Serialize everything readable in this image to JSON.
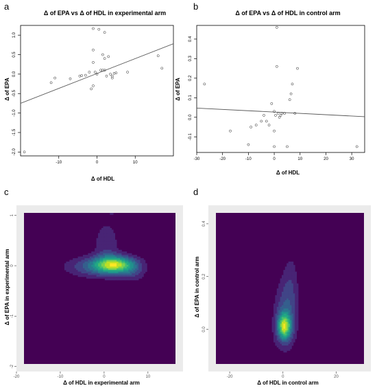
{
  "chart_data": [
    {
      "panel": "a",
      "type": "scatter",
      "title": "Δ of EPA vs Δ of HDL in experimental arm",
      "xlabel": "Δ of HDL",
      "ylabel": "Δ of EPA",
      "xlim": [
        -20,
        20
      ],
      "ylim": [
        -2.1,
        1.25
      ],
      "xticks": [
        -10,
        0,
        10
      ],
      "yticks": [
        -2.0,
        -1.5,
        -1.0,
        -0.5,
        0.0,
        0.5,
        1.0
      ],
      "grid": false,
      "points": [
        [
          -19,
          -2.0
        ],
        [
          -11,
          -0.1
        ],
        [
          -12,
          -0.22
        ],
        [
          -7,
          -0.12
        ],
        [
          -4.5,
          -0.05
        ],
        [
          -4,
          -0.04
        ],
        [
          -3,
          -0.03
        ],
        [
          -2,
          0.05
        ],
        [
          -1.5,
          -0.38
        ],
        [
          -1,
          -0.3
        ],
        [
          -1,
          0.3
        ],
        [
          -0.5,
          0.05
        ],
        [
          0,
          0.0
        ],
        [
          1,
          0.1
        ],
        [
          1.5,
          0.1
        ],
        [
          1.5,
          0.5
        ],
        [
          2,
          0.4
        ],
        [
          2,
          0.1
        ],
        [
          2.5,
          -0.05
        ],
        [
          3,
          0.45
        ],
        [
          3.5,
          0.0
        ],
        [
          4,
          -0.1
        ],
        [
          4,
          -0.05
        ],
        [
          4.5,
          0.02
        ],
        [
          5,
          0.03
        ],
        [
          8,
          0.05
        ],
        [
          -1,
          0.62
        ],
        [
          -1,
          1.17
        ],
        [
          0.5,
          1.15
        ],
        [
          2,
          1.07
        ],
        [
          16,
          0.47
        ],
        [
          17,
          0.15
        ]
      ],
      "regression_line": [
        [
          -20,
          -0.75
        ],
        [
          20,
          0.78
        ]
      ]
    },
    {
      "panel": "b",
      "type": "scatter",
      "title": "Δ of EPA vs Δ of HDL in control arm",
      "xlabel": "Δ of HDL",
      "ylabel": "Δ of EPA",
      "xlim": [
        -30,
        35
      ],
      "ylim": [
        -0.18,
        0.47
      ],
      "xticks": [
        -30,
        -20,
        -10,
        0,
        10,
        20,
        30
      ],
      "yticks": [
        -0.1,
        0.0,
        0.1,
        0.2,
        0.3,
        0.4
      ],
      "grid": false,
      "points": [
        [
          -27,
          0.17
        ],
        [
          -17,
          -0.07
        ],
        [
          -10,
          -0.14
        ],
        [
          -9,
          -0.05
        ],
        [
          -7,
          -0.04
        ],
        [
          -5,
          -0.02
        ],
        [
          -4,
          0.01
        ],
        [
          -3,
          -0.02
        ],
        [
          -2,
          -0.04
        ],
        [
          -1,
          0.07
        ],
        [
          0,
          0.03
        ],
        [
          0,
          -0.15
        ],
        [
          0,
          -0.07
        ],
        [
          0.5,
          0.01
        ],
        [
          1,
          0.26
        ],
        [
          1,
          0.46
        ],
        [
          1.5,
          0.02
        ],
        [
          2,
          0.0
        ],
        [
          2.5,
          0.01
        ],
        [
          3,
          0.02
        ],
        [
          4,
          0.02
        ],
        [
          5,
          -0.15
        ],
        [
          6,
          0.09
        ],
        [
          6.5,
          0.12
        ],
        [
          7,
          0.17
        ],
        [
          8,
          0.02
        ],
        [
          9,
          0.25
        ],
        [
          32,
          -0.15
        ]
      ],
      "regression_line": [
        [
          -30,
          0.047
        ],
        [
          35,
          0.003
        ]
      ]
    },
    {
      "panel": "c",
      "type": "heatmap",
      "subtype": "2d-density-contour",
      "xlabel": "Δ of HDL in experimental arm",
      "ylabel": "Δ of EPA in experimental arm",
      "xlim": [
        -20,
        18
      ],
      "ylim": [
        -2.1,
        1.2
      ],
      "xticks": [
        -20,
        -10,
        0,
        10
      ],
      "yticks": [
        -2,
        -1,
        0,
        1
      ],
      "colormap": "viridis",
      "background_color": "#440154",
      "panel_background": "#ebebeb",
      "peaks": [
        {
          "x": 2.5,
          "y": 0.02,
          "sx": 3.2,
          "sy": 0.12,
          "w": 1.0
        },
        {
          "x": -2.5,
          "y": -0.02,
          "sx": 4.5,
          "sy": 0.14,
          "w": 0.35
        },
        {
          "x": 0.5,
          "y": 0.45,
          "sx": 2.0,
          "sy": 0.3,
          "w": 0.22
        },
        {
          "x": 6.5,
          "y": -0.12,
          "sx": 2.0,
          "sy": 0.15,
          "w": 0.2
        },
        {
          "x": 2.0,
          "y": 1.05,
          "sx": 1.5,
          "sy": 0.1,
          "w": 0.1
        },
        {
          "x": 16,
          "y": 0.45,
          "sx": 1.0,
          "sy": 0.06,
          "w": 0.09
        }
      ]
    },
    {
      "panel": "d",
      "type": "heatmap",
      "subtype": "2d-density-contour",
      "xlabel": "Δ of HDL in control arm",
      "ylabel": "Δ of EPA in control arm",
      "xlim": [
        -28,
        33
      ],
      "ylim": [
        -0.16,
        0.47
      ],
      "xticks": [
        -20,
        0,
        20
      ],
      "yticks": [
        0.0,
        0.2,
        0.4
      ],
      "colormap": "viridis",
      "background_color": "#440154",
      "panel_background": "#ebebeb",
      "peaks": [
        {
          "x": 0.5,
          "y": 0.01,
          "sx": 1.8,
          "sy": 0.035,
          "w": 1.0
        },
        {
          "x": 1.0,
          "y": 0.06,
          "sx": 3.0,
          "sy": 0.09,
          "w": 0.35
        },
        {
          "x": 3.0,
          "y": 0.18,
          "sx": 2.0,
          "sy": 0.09,
          "w": 0.15
        },
        {
          "x": -8.0,
          "y": -0.06,
          "sx": 3.0,
          "sy": 0.03,
          "w": 0.12
        },
        {
          "x": 6.0,
          "y": -0.14,
          "sx": 2.0,
          "sy": 0.02,
          "w": 0.07
        },
        {
          "x": 9.0,
          "y": 0.25,
          "sx": 1.8,
          "sy": 0.03,
          "w": 0.07
        }
      ]
    }
  ]
}
